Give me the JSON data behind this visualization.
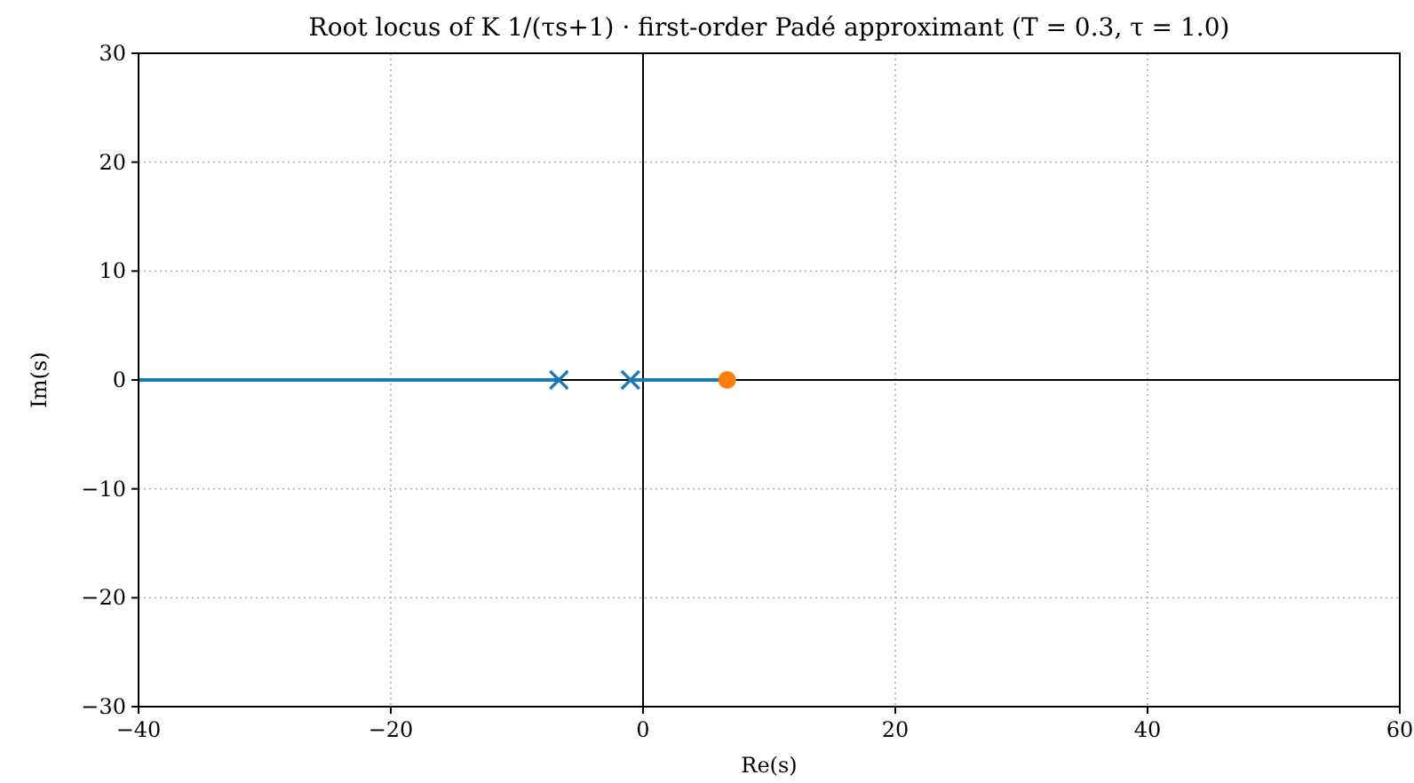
{
  "chart_data": {
    "type": "line",
    "title": "Root locus of K 1/(τs+1) · first-order Padé approximant (T = 0.3, τ = 1.0)",
    "xlabel": "Re(s)",
    "ylabel": "Im(s)",
    "xlim": [
      -40,
      60
    ],
    "xticks": [
      {
        "value": -40,
        "label": "−40"
      },
      {
        "value": -20,
        "label": "−20"
      },
      0,
      20,
      40,
      60
    ],
    "ylim": [
      -30,
      30
    ],
    "yticks": [
      {
        "value": -30,
        "label": "−30"
      },
      {
        "value": -20,
        "label": "−20"
      },
      {
        "value": -10,
        "label": "−10"
      },
      0,
      10,
      20,
      30
    ],
    "grid": true,
    "series": [
      {
        "color": "#000000",
        "x": [
          0,
          0
        ],
        "values": [
          -30,
          30
        ]
      },
      {
        "color": "#000000",
        "x": [
          -40,
          60
        ],
        "values": [
          0,
          0
        ]
      },
      {
        "color": "#1f77b4",
        "x": [
          -40,
          -6.67
        ],
        "values": [
          0,
          0
        ]
      },
      {
        "color": "#1f77b4",
        "x": [
          -1,
          6.67
        ],
        "values": [
          0,
          0
        ]
      },
      {
        "type": "scatter",
        "color": "#1f77b4",
        "x": [
          -6.67,
          -1
        ],
        "values": [
          0,
          0
        ],
        "marker": "cross"
      },
      {
        "type": "scatter",
        "color": "#ff7f0e",
        "x": [
          6.67
        ],
        "values": [
          0
        ],
        "marker": "circle"
      }
    ]
  }
}
